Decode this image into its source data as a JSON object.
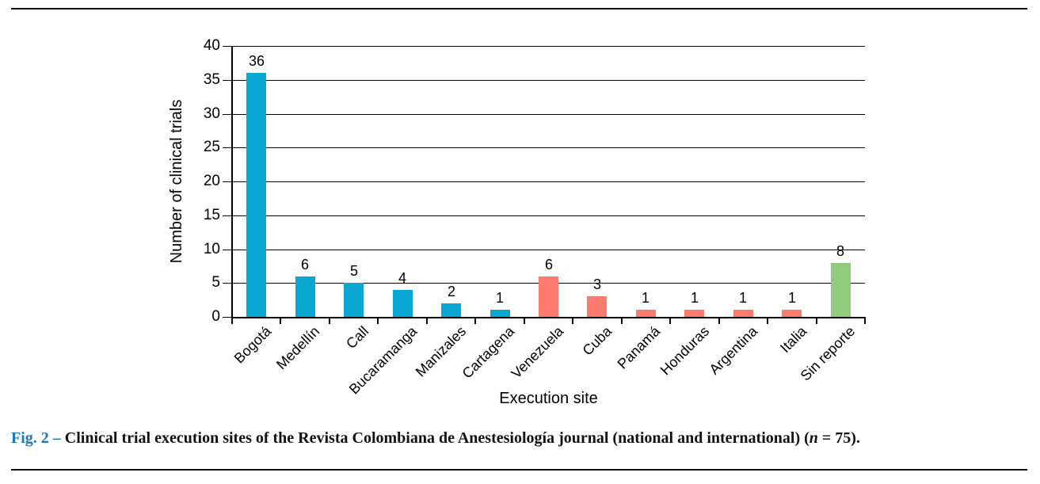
{
  "figure": {
    "caption": {
      "fig_label": "Fig. 2 –",
      "body": " Clinical trial execution sites of the Revista Colombiana de Anestesiología journal (national and international) (",
      "n_symbol": "n",
      "tail": " = 75)."
    }
  },
  "chart_data": {
    "type": "bar",
    "title": "",
    "xlabel": "Execution site",
    "ylabel": "Number of clinical trials",
    "categories": [
      "Bogotá",
      "Medellín",
      "Call",
      "Bucaramanga",
      "Manizales",
      "Cartagena",
      "Venezuela",
      "Cuba",
      "Panamá",
      "Honduras",
      "Argentina",
      "Italia",
      "Sin reporte"
    ],
    "values": [
      36,
      6,
      5,
      4,
      2,
      1,
      6,
      3,
      1,
      1,
      1,
      1,
      8
    ],
    "bar_colors": [
      "#0aa7d4",
      "#0aa7d4",
      "#0aa7d4",
      "#0aa7d4",
      "#0aa7d4",
      "#0aa7d4",
      "#fc7a6e",
      "#fc7a6e",
      "#fc7a6e",
      "#fc7a6e",
      "#fc7a6e",
      "#fc7a6e",
      "#90cb7d"
    ],
    "color_meaning": {
      "national_city_blue": "#0aa7d4",
      "international_salmon": "#fc7a6e",
      "sin_reporte_green": "#90cb7d"
    },
    "ylim": [
      0,
      40
    ],
    "yticks": [
      0,
      5,
      10,
      15,
      20,
      25,
      30,
      35,
      40
    ],
    "grid": "horizontal",
    "data_labels": true,
    "legend": "none",
    "accent_caption_color": "#1b78b9"
  }
}
